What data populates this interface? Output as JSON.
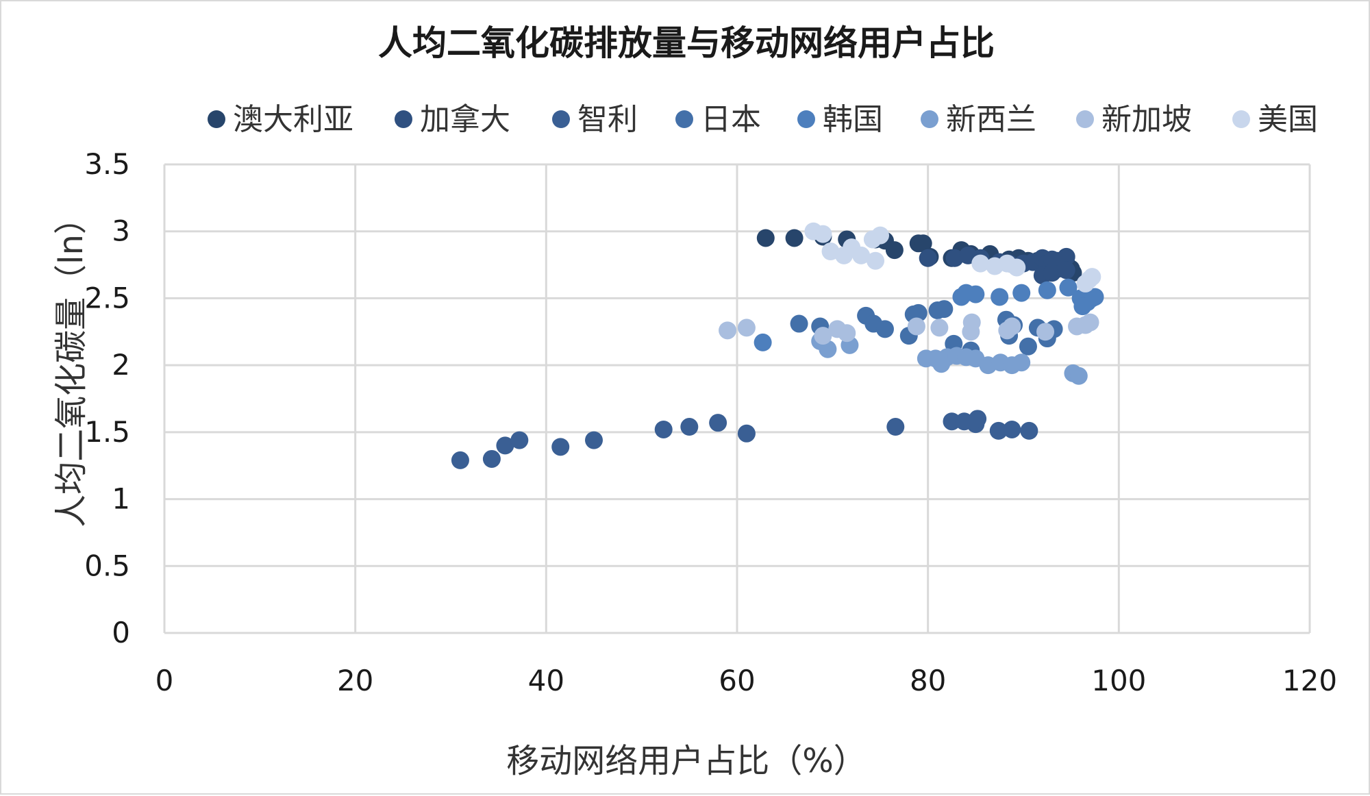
{
  "chart_data": {
    "type": "scatter",
    "title": "人均二氧化碳排放量与移动网络用户占比",
    "xlabel": "移动网络用户占比（%）",
    "ylabel": "人均二氧化碳量（ln）",
    "xlim": [
      0,
      120
    ],
    "ylim": [
      0,
      3.5
    ],
    "x_ticks": [
      "0",
      "20",
      "40",
      "60",
      "80",
      "100",
      "120"
    ],
    "y_ticks": [
      "0",
      "0.5",
      "1",
      "1.5",
      "2",
      "2.5",
      "3",
      "3.5"
    ],
    "grid": true,
    "legend_position": "top",
    "series": [
      {
        "name": "澳大利亚",
        "color": "#27456b",
        "points": [
          [
            63,
            2.95
          ],
          [
            66,
            2.95
          ],
          [
            69,
            2.96
          ],
          [
            71.5,
            2.94
          ],
          [
            74.5,
            2.94
          ],
          [
            75.5,
            2.93
          ],
          [
            76.5,
            2.86
          ],
          [
            79,
            2.91
          ],
          [
            79.5,
            2.91
          ],
          [
            80.2,
            2.81
          ],
          [
            82.5,
            2.8
          ],
          [
            83.5,
            2.86
          ],
          [
            84.5,
            2.83
          ],
          [
            86.5,
            2.83
          ],
          [
            88.5,
            2.79
          ],
          [
            89.5,
            2.8
          ],
          [
            90.5,
            2.78
          ],
          [
            91.5,
            2.78
          ],
          [
            92.2,
            2.72
          ],
          [
            92.8,
            2.74
          ],
          [
            93.6,
            2.72
          ],
          [
            94.5,
            2.76
          ],
          [
            95,
            2.72
          ],
          [
            95.2,
            2.69
          ]
        ]
      },
      {
        "name": "加拿大",
        "color": "#2f5080",
        "points": [
          [
            80,
            2.8
          ],
          [
            82.8,
            2.8
          ],
          [
            84.2,
            2.82
          ],
          [
            85.5,
            2.8
          ],
          [
            87.5,
            2.77
          ],
          [
            88.5,
            2.76
          ],
          [
            90,
            2.76
          ],
          [
            91,
            2.77
          ],
          [
            92,
            2.8
          ],
          [
            92.5,
            2.76
          ],
          [
            93,
            2.79
          ],
          [
            93.6,
            2.78
          ],
          [
            94.5,
            2.81
          ],
          [
            92,
            2.67
          ],
          [
            93,
            2.69
          ],
          [
            94.5,
            2.71
          ]
        ]
      },
      {
        "name": "智利",
        "color": "#3a5f94",
        "points": [
          [
            31,
            1.29
          ],
          [
            34.3,
            1.3
          ],
          [
            35.7,
            1.4
          ],
          [
            37.2,
            1.44
          ],
          [
            41.5,
            1.39
          ],
          [
            45,
            1.44
          ],
          [
            52.3,
            1.52
          ],
          [
            55,
            1.54
          ],
          [
            58,
            1.57
          ],
          [
            61,
            1.49
          ],
          [
            76.6,
            1.54
          ],
          [
            82.5,
            1.58
          ],
          [
            83.8,
            1.58
          ],
          [
            85,
            1.56
          ],
          [
            85.2,
            1.6
          ],
          [
            87.4,
            1.51
          ],
          [
            88.8,
            1.52
          ],
          [
            90.6,
            1.51
          ]
        ]
      },
      {
        "name": "日本",
        "color": "#4370a9",
        "points": [
          [
            66.5,
            2.31
          ],
          [
            68.7,
            2.29
          ],
          [
            73.5,
            2.37
          ],
          [
            74.3,
            2.31
          ],
          [
            75.5,
            2.27
          ],
          [
            78.5,
            2.38
          ],
          [
            79,
            2.39
          ],
          [
            78,
            2.22
          ],
          [
            81,
            2.41
          ],
          [
            81.7,
            2.42
          ],
          [
            82.7,
            2.16
          ],
          [
            84.5,
            2.11
          ],
          [
            88.5,
            2.22
          ],
          [
            89,
            2.3
          ],
          [
            90.5,
            2.14
          ],
          [
            91.5,
            2.28
          ],
          [
            92.5,
            2.2
          ],
          [
            93.2,
            2.27
          ],
          [
            88.2,
            2.34
          ]
        ]
      },
      {
        "name": "韩国",
        "color": "#4d7fbd",
        "points": [
          [
            62.7,
            2.17
          ],
          [
            83.5,
            2.51
          ],
          [
            84,
            2.54
          ],
          [
            85,
            2.53
          ],
          [
            87.5,
            2.51
          ],
          [
            89.8,
            2.54
          ],
          [
            92.5,
            2.56
          ],
          [
            94.7,
            2.58
          ],
          [
            96,
            2.5
          ],
          [
            96.7,
            2.47
          ],
          [
            97.2,
            2.5
          ],
          [
            97.5,
            2.51
          ],
          [
            96.2,
            2.44
          ]
        ]
      },
      {
        "name": "新西兰",
        "color": "#7a9fd0",
        "points": [
          [
            68.7,
            2.18
          ],
          [
            69.5,
            2.12
          ],
          [
            71.8,
            2.15
          ],
          [
            79.8,
            2.05
          ],
          [
            80.8,
            2.05
          ],
          [
            81.4,
            2.01
          ],
          [
            82,
            2.06
          ],
          [
            83,
            2.07
          ],
          [
            84,
            2.06
          ],
          [
            85,
            2.05
          ],
          [
            86.3,
            2.0
          ],
          [
            87.6,
            2.02
          ],
          [
            88.8,
            2.0
          ],
          [
            89.8,
            2.02
          ],
          [
            95.2,
            1.94
          ],
          [
            95.8,
            1.92
          ]
        ]
      },
      {
        "name": "新加坡",
        "color": "#a9bedf",
        "points": [
          [
            59,
            2.26
          ],
          [
            61,
            2.28
          ],
          [
            69,
            2.22
          ],
          [
            70.5,
            2.27
          ],
          [
            71.5,
            2.24
          ],
          [
            78.8,
            2.29
          ],
          [
            81.2,
            2.28
          ],
          [
            84.5,
            2.25
          ],
          [
            84.6,
            2.32
          ],
          [
            88.3,
            2.26
          ],
          [
            88.8,
            2.29
          ],
          [
            92.3,
            2.25
          ],
          [
            95.6,
            2.29
          ],
          [
            96.5,
            2.3
          ],
          [
            97,
            2.32
          ]
        ]
      },
      {
        "name": "美国",
        "color": "#c8d6ec",
        "points": [
          [
            68,
            3.0
          ],
          [
            69,
            2.98
          ],
          [
            69.8,
            2.85
          ],
          [
            71.2,
            2.82
          ],
          [
            72,
            2.88
          ],
          [
            73,
            2.82
          ],
          [
            74.5,
            2.78
          ],
          [
            74.2,
            2.94
          ],
          [
            75,
            2.97
          ],
          [
            85.5,
            2.76
          ],
          [
            87,
            2.74
          ],
          [
            88.3,
            2.76
          ],
          [
            89.3,
            2.73
          ],
          [
            96.5,
            2.61
          ],
          [
            97.2,
            2.66
          ],
          [
            96.9,
            2.64
          ]
        ]
      }
    ]
  }
}
